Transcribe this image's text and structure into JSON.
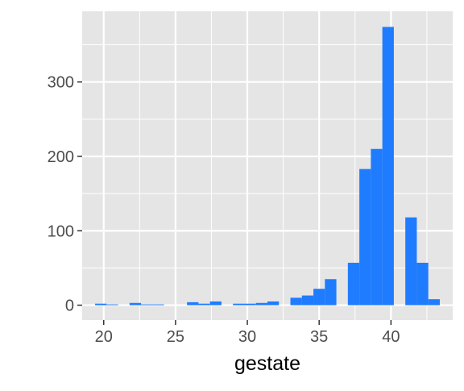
{
  "chart_data": {
    "type": "bar",
    "title": "",
    "xlabel": "gestate",
    "ylabel": "",
    "x_range": [
      18.5,
      44.3
    ],
    "ylim": [
      -20,
      395
    ],
    "x_ticks": [
      20,
      25,
      30,
      35,
      40
    ],
    "y_ticks": [
      0,
      100,
      200,
      300
    ],
    "grid": true,
    "legend": "none",
    "colors": {
      "bar": "#1f7cff",
      "panel_background": "#e5e5e5",
      "grid": "#ffffff",
      "axis_text": "#4d4d4d",
      "axis_title": "#000000"
    },
    "bin_width": 0.8,
    "bins": [
      {
        "x": 19.8,
        "count": 2
      },
      {
        "x": 20.6,
        "count": 1
      },
      {
        "x": 22.2,
        "count": 3
      },
      {
        "x": 23.0,
        "count": 1
      },
      {
        "x": 23.8,
        "count": 1
      },
      {
        "x": 26.2,
        "count": 4
      },
      {
        "x": 27.0,
        "count": 2
      },
      {
        "x": 27.8,
        "count": 5
      },
      {
        "x": 29.4,
        "count": 2
      },
      {
        "x": 30.2,
        "count": 2
      },
      {
        "x": 31.0,
        "count": 3
      },
      {
        "x": 31.8,
        "count": 5
      },
      {
        "x": 33.4,
        "count": 10
      },
      {
        "x": 34.2,
        "count": 13
      },
      {
        "x": 35.0,
        "count": 22
      },
      {
        "x": 35.8,
        "count": 35
      },
      {
        "x": 37.4,
        "count": 57
      },
      {
        "x": 38.2,
        "count": 183
      },
      {
        "x": 39.0,
        "count": 210
      },
      {
        "x": 39.8,
        "count": 374
      },
      {
        "x": 41.4,
        "count": 118
      },
      {
        "x": 42.2,
        "count": 57
      },
      {
        "x": 43.0,
        "count": 8
      }
    ]
  }
}
